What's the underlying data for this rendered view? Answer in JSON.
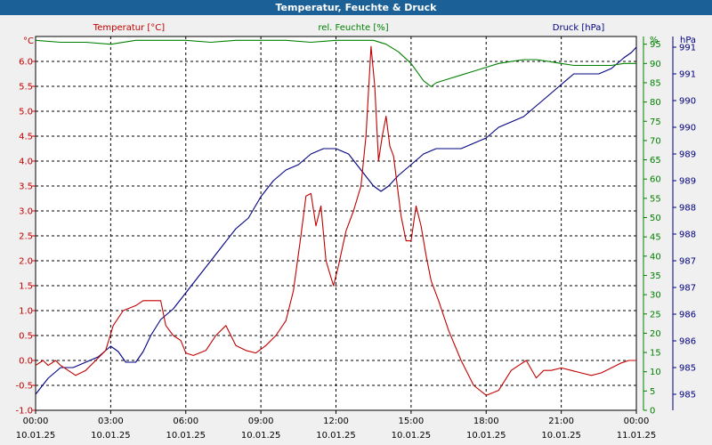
{
  "window": {
    "title": "Temperatur, Feuchte & Druck"
  },
  "colors": {
    "temperature": "#c00000",
    "humidity": "#008000",
    "pressure": "#000080",
    "grid": "#000000",
    "background": "#ffffff"
  },
  "chart_data": {
    "type": "line",
    "title": "Temperatur, Feuchte & Druck",
    "x_range_hours": [
      0,
      24
    ],
    "x_ticks": [
      {
        "time": "00:00",
        "date": "10.01.25"
      },
      {
        "time": "03:00",
        "date": "10.01.25"
      },
      {
        "time": "06:00",
        "date": "10.01.25"
      },
      {
        "time": "09:00",
        "date": "10.01.25"
      },
      {
        "time": "12:00",
        "date": "10.01.25"
      },
      {
        "time": "15:00",
        "date": "10.01.25"
      },
      {
        "time": "18:00",
        "date": "10.01.25"
      },
      {
        "time": "21:00",
        "date": "10.01.25"
      },
      {
        "time": "00:00",
        "date": "11.01.25"
      }
    ],
    "axes": {
      "temperature": {
        "label": "Temperatur [°C]",
        "unit": "°C",
        "range": [
          -1.0,
          6.5
        ],
        "ticks": [
          "-1.0",
          "-0.5",
          "0.0",
          "0.5",
          "1.0",
          "1.5",
          "2.0",
          "2.5",
          "3.0",
          "3.5",
          "4.0",
          "4.5",
          "5.0",
          "5.5",
          "6.0"
        ]
      },
      "humidity": {
        "label": "rel. Feuchte [%]",
        "unit": "%",
        "range": [
          0,
          97
        ],
        "ticks": [
          "0",
          "5",
          "10",
          "15",
          "20",
          "25",
          "30",
          "35",
          "40",
          "45",
          "50",
          "55",
          "60",
          "65",
          "70",
          "75",
          "80",
          "85",
          "90",
          "95"
        ]
      },
      "pressure": {
        "label": "Druck [hPa]",
        "unit": "hPa",
        "range": [
          984.7,
          991.7
        ],
        "ticks": [
          "985",
          "985",
          "986",
          "986",
          "987",
          "987",
          "988",
          "988",
          "989",
          "989",
          "990",
          "990",
          "991",
          "991"
        ]
      }
    },
    "grid": true,
    "series": [
      {
        "name": "Temperatur [°C]",
        "axis": "temperature",
        "x": [
          0,
          0.3,
          0.5,
          0.8,
          1.0,
          1.3,
          1.6,
          2.0,
          2.4,
          2.8,
          3.1,
          3.5,
          4.0,
          4.3,
          4.6,
          5.0,
          5.2,
          5.5,
          5.8,
          6.0,
          6.3,
          6.8,
          7.2,
          7.6,
          8.0,
          8.4,
          8.8,
          9.2,
          9.6,
          10.0,
          10.3,
          10.6,
          10.8,
          11.0,
          11.2,
          11.4,
          11.6,
          11.9,
          12.1,
          12.4,
          12.7,
          13.0,
          13.2,
          13.4,
          13.55,
          13.7,
          13.85,
          14.0,
          14.15,
          14.3,
          14.45,
          14.6,
          14.8,
          15.0,
          15.2,
          15.4,
          15.6,
          15.8,
          16.1,
          16.5,
          17.0,
          17.5,
          18.0,
          18.5,
          19.0,
          19.3,
          19.6,
          20.0,
          20.3,
          20.6,
          21.0,
          21.4,
          21.8,
          22.2,
          22.6,
          23.0,
          23.4,
          23.7,
          24.0
        ],
        "y": [
          -0.1,
          0.0,
          -0.1,
          0.0,
          -0.1,
          -0.2,
          -0.3,
          -0.2,
          0.0,
          0.2,
          0.7,
          1.0,
          1.1,
          1.2,
          1.2,
          1.2,
          0.7,
          0.5,
          0.4,
          0.15,
          0.1,
          0.2,
          0.5,
          0.7,
          0.3,
          0.2,
          0.15,
          0.3,
          0.5,
          0.8,
          1.4,
          2.5,
          3.3,
          3.35,
          2.7,
          3.1,
          2.0,
          1.5,
          1.9,
          2.6,
          3.0,
          3.5,
          4.5,
          6.3,
          5.5,
          4.0,
          4.5,
          4.9,
          4.3,
          4.1,
          3.5,
          2.9,
          2.4,
          2.4,
          3.1,
          2.7,
          2.1,
          1.6,
          1.2,
          0.6,
          0.0,
          -0.5,
          -0.7,
          -0.6,
          -0.2,
          -0.1,
          0.0,
          -0.35,
          -0.2,
          -0.2,
          -0.15,
          -0.2,
          -0.25,
          -0.3,
          -0.25,
          -0.15,
          -0.05,
          0.0,
          0.0
        ]
      },
      {
        "name": "rel. Feuchte [%]",
        "axis": "humidity",
        "x": [
          0,
          1,
          2,
          3,
          4,
          5,
          6,
          7,
          8,
          9,
          10,
          11,
          12,
          13,
          13.5,
          14,
          14.5,
          15,
          15.5,
          15.8,
          16,
          16.5,
          17,
          17.5,
          18,
          18.5,
          19,
          19.5,
          20,
          20.5,
          21,
          21.5,
          22,
          22.5,
          23,
          23.5,
          24
        ],
        "y": [
          96,
          95.5,
          95.5,
          95,
          96,
          96,
          96,
          95.5,
          96,
          96,
          96,
          95.5,
          96,
          96,
          96,
          95,
          93,
          90,
          85.5,
          84,
          85,
          86,
          87,
          88,
          89,
          90,
          90.5,
          91,
          91,
          90.5,
          90,
          89.5,
          89.5,
          89.5,
          89.5,
          90,
          90
        ]
      },
      {
        "name": "Druck [hPa]",
        "axis": "pressure",
        "x": [
          0,
          0.5,
          1.0,
          1.5,
          2.0,
          2.5,
          3.0,
          3.3,
          3.6,
          4.0,
          4.3,
          4.6,
          5.0,
          5.5,
          6.0,
          6.5,
          7.0,
          7.5,
          8.0,
          8.5,
          9.0,
          9.5,
          10.0,
          10.5,
          11.0,
          11.5,
          12.0,
          12.5,
          13.0,
          13.5,
          13.8,
          14.1,
          14.5,
          15.0,
          15.5,
          16.0,
          16.5,
          17.0,
          17.5,
          18.0,
          18.5,
          19.0,
          19.5,
          20.0,
          20.5,
          21.0,
          21.5,
          22.0,
          22.5,
          23.0,
          23.5,
          23.8,
          24.0
        ],
        "y": [
          985.0,
          985.3,
          985.5,
          985.5,
          985.6,
          985.7,
          985.9,
          985.8,
          985.6,
          985.6,
          985.8,
          986.1,
          986.4,
          986.6,
          986.9,
          987.2,
          987.5,
          987.8,
          988.1,
          988.3,
          988.7,
          989.0,
          989.2,
          989.3,
          989.5,
          989.6,
          989.6,
          989.5,
          989.2,
          988.9,
          988.8,
          988.9,
          989.1,
          989.3,
          989.5,
          989.6,
          989.6,
          989.6,
          989.7,
          989.8,
          990.0,
          990.1,
          990.2,
          990.4,
          990.6,
          990.8,
          991.0,
          991.0,
          991.0,
          991.1,
          991.3,
          991.4,
          991.5
        ]
      }
    ]
  }
}
